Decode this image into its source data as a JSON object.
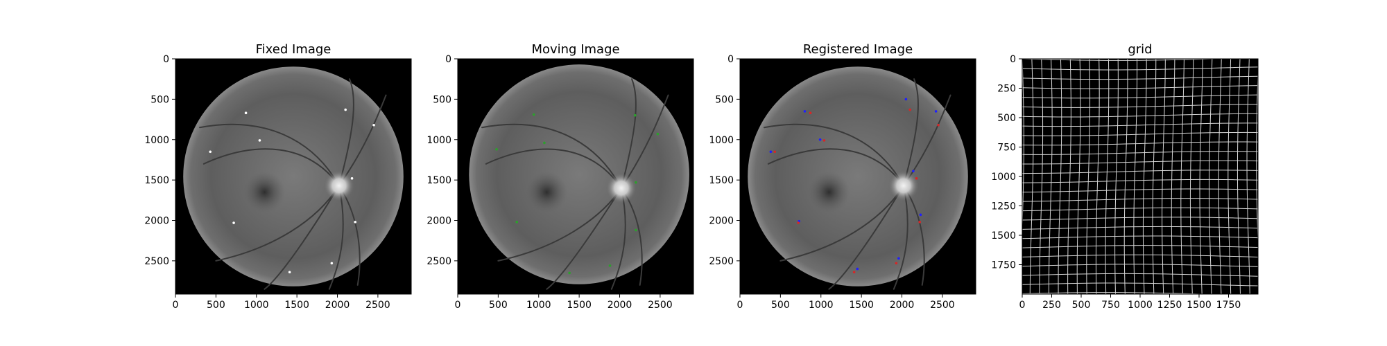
{
  "figure": {
    "background": "#ffffff",
    "text_color": "#000000"
  },
  "chart_data": [
    {
      "type": "image",
      "title": "Fixed Image",
      "content": "retinal fundus photograph",
      "xlim": [
        0,
        2912
      ],
      "ylim": [
        2912,
        0
      ],
      "xticks": [
        0,
        500,
        1000,
        1500,
        2000,
        2500
      ],
      "yticks": [
        0,
        500,
        1000,
        1500,
        2000,
        2500
      ],
      "fundus": {
        "center": [
          1456,
          1456
        ],
        "radius": 1360,
        "optic_disc": [
          2020,
          1570
        ]
      },
      "markers": {
        "color": "#ffffff",
        "points": [
          [
            870,
            670
          ],
          [
            2100,
            630
          ],
          [
            2450,
            820
          ],
          [
            1040,
            1010
          ],
          [
            430,
            1150
          ],
          [
            2180,
            1480
          ],
          [
            720,
            2030
          ],
          [
            2220,
            2020
          ],
          [
            1410,
            2640
          ],
          [
            1930,
            2530
          ]
        ]
      }
    },
    {
      "type": "image",
      "title": "Moving Image",
      "content": "retinal fundus photograph",
      "xlim": [
        0,
        2912
      ],
      "ylim": [
        2912,
        0
      ],
      "xticks": [
        0,
        500,
        1000,
        1500,
        2000,
        2500
      ],
      "yticks": [
        0,
        500,
        1000,
        1500,
        2000,
        2500
      ],
      "fundus": {
        "center": [
          1500,
          1430
        ],
        "radius": 1360,
        "optic_disc": [
          2020,
          1600
        ]
      },
      "markers": {
        "color": "#2ca02c",
        "points": [
          [
            940,
            690
          ],
          [
            2190,
            700
          ],
          [
            2470,
            930
          ],
          [
            1070,
            1040
          ],
          [
            480,
            1120
          ],
          [
            2200,
            1530
          ],
          [
            730,
            2020
          ],
          [
            2200,
            2120
          ],
          [
            1380,
            2650
          ],
          [
            1880,
            2560
          ]
        ]
      }
    },
    {
      "type": "image",
      "title": "Registered Image",
      "content": "retinal fundus photograph",
      "xlim": [
        0,
        2912
      ],
      "ylim": [
        2912,
        0
      ],
      "xticks": [
        0,
        500,
        1000,
        1500,
        2000,
        2500
      ],
      "yticks": [
        0,
        500,
        1000,
        1500,
        2000,
        2500
      ],
      "fundus": {
        "center": [
          1456,
          1456
        ],
        "radius": 1360,
        "optic_disc": [
          2020,
          1570
        ]
      },
      "markers": [
        {
          "color": "#1f1fff",
          "points": [
            [
              800,
              650
            ],
            [
              2050,
              500
            ],
            [
              2420,
              650
            ],
            [
              990,
              1000
            ],
            [
              380,
              1150
            ],
            [
              2140,
              1390
            ],
            [
              730,
              2010
            ],
            [
              2230,
              1930
            ],
            [
              1450,
              2600
            ],
            [
              1960,
              2470
            ]
          ]
        },
        {
          "color": "#d62728",
          "points": [
            [
              870,
              670
            ],
            [
              2100,
              630
            ],
            [
              2450,
              820
            ],
            [
              1040,
              1010
            ],
            [
              430,
              1150
            ],
            [
              2180,
              1480
            ],
            [
              720,
              2030
            ],
            [
              2220,
              2020
            ],
            [
              1410,
              2640
            ],
            [
              1930,
              2530
            ]
          ]
        }
      ]
    },
    {
      "type": "grid",
      "title": "grid",
      "content": "deformation grid",
      "xlim": [
        0,
        2000
      ],
      "ylim": [
        2000,
        0
      ],
      "xticks": [
        0,
        250,
        500,
        750,
        1000,
        1250,
        1500,
        1750
      ],
      "yticks": [
        0,
        250,
        500,
        750,
        1000,
        1250,
        1500,
        1750
      ],
      "line_spacing": 80,
      "background": "#000000",
      "line_color": "#d8d8d8"
    }
  ]
}
